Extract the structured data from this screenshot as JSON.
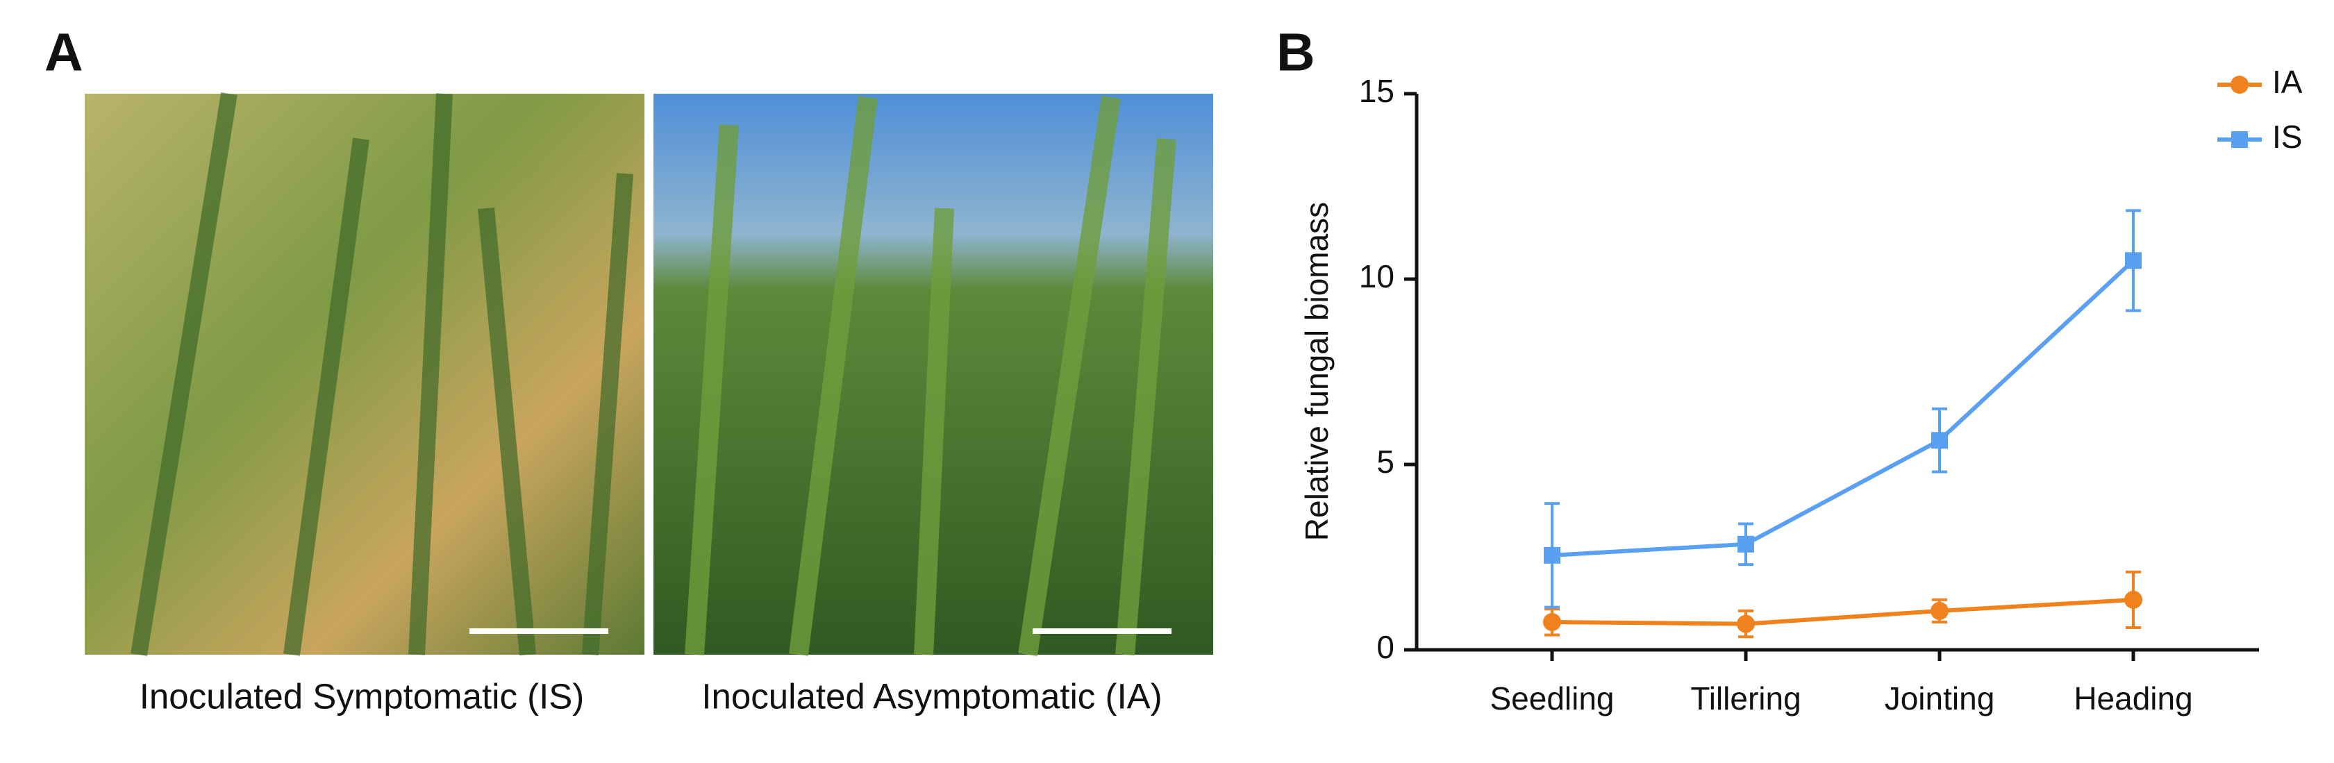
{
  "panel_a": {
    "label": "A",
    "photos": [
      {
        "caption": "Inoculated Symptomatic (IS)"
      },
      {
        "caption": "Inoculated Asymptomatic (IA)"
      }
    ]
  },
  "chart_data": {
    "type": "line",
    "panel_label": "B",
    "y_label": "Relative fungal biomass",
    "categories": [
      "Seedling",
      "Tillering",
      "Jointing",
      "Heading"
    ],
    "series": [
      {
        "name": "IA",
        "color": "#f0821e",
        "marker": "circle",
        "values": [
          0.75,
          0.7,
          1.05,
          1.35
        ],
        "errors": [
          0.35,
          0.35,
          0.3,
          0.75
        ]
      },
      {
        "name": "IS",
        "color": "#5aa0f0",
        "marker": "square",
        "values": [
          2.55,
          2.85,
          5.65,
          10.5
        ],
        "errors": [
          1.4,
          0.55,
          0.85,
          1.35
        ]
      }
    ],
    "ylim": [
      0,
      15
    ],
    "yticks": [
      0,
      5,
      10,
      15
    ],
    "legend": "top-right"
  }
}
